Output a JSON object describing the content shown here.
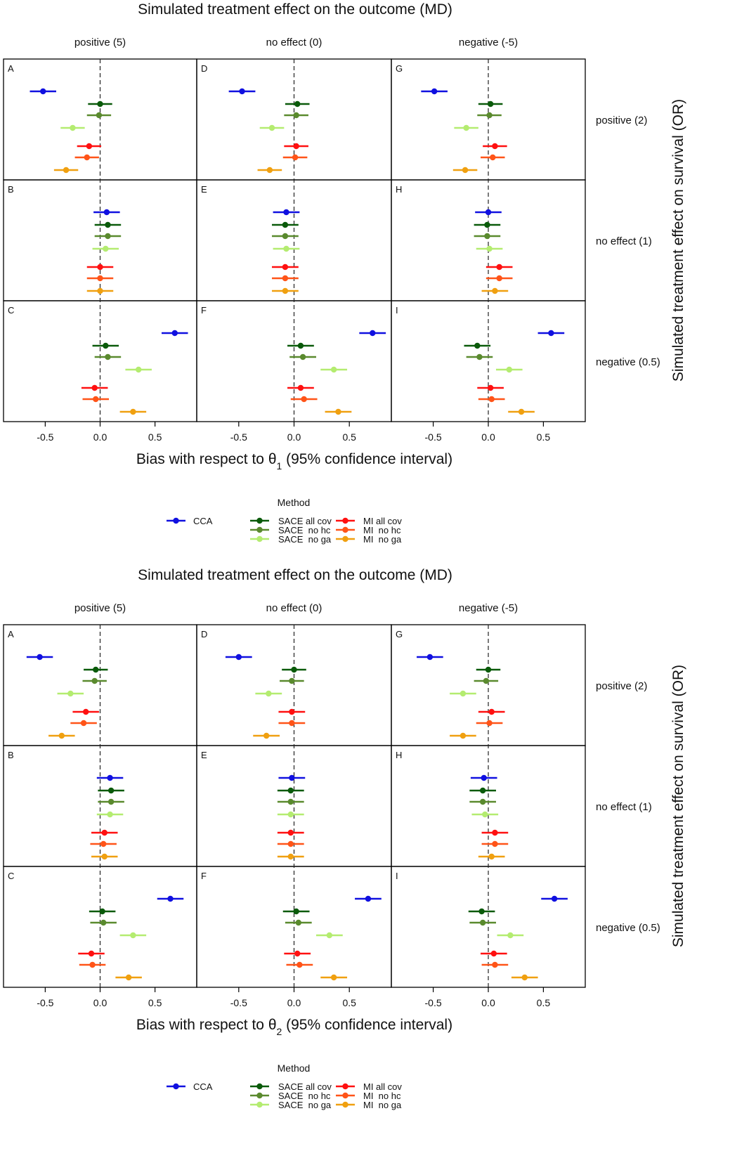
{
  "chart_data": [
    {
      "type": "forest",
      "title": "Simulated treatment effect on the outcome (MD)",
      "xlabel_prefix": "Bias with respect to θ",
      "xlabel_sub": "1",
      "xlabel_suffix": " (95% confidence interval)",
      "ylabel": "Simulated treatment effect on survival (OR)",
      "xlim": [
        -0.88,
        0.88
      ],
      "xticks": [
        "-0.5",
        "0.0",
        "0.5"
      ],
      "xtick_values": [
        -0.5,
        0.0,
        0.5
      ],
      "reference_line": 0,
      "columns": [
        "positive (5)",
        "no effect (0)",
        "negative (-5)"
      ],
      "rows": [
        "positive (2)",
        "no effect (1)",
        "negative (0.5)"
      ],
      "series_order": [
        "CCA",
        "SACE all cov",
        "SACE no hc",
        "SACE no ga",
        "MI all cov",
        "MI no hc",
        "MI no ga"
      ],
      "panels": [
        {
          "label": "A",
          "estimates": [
            -0.52,
            0.0,
            -0.01,
            -0.25,
            -0.1,
            -0.12,
            -0.31
          ],
          "ci_half_width": [
            0.12,
            0.11,
            0.11,
            0.11,
            0.11,
            0.11,
            0.11
          ]
        },
        {
          "label": "D",
          "estimates": [
            -0.47,
            0.03,
            0.02,
            -0.2,
            0.02,
            0.01,
            -0.22
          ],
          "ci_half_width": [
            0.12,
            0.11,
            0.11,
            0.11,
            0.11,
            0.11,
            0.11
          ]
        },
        {
          "label": "G",
          "estimates": [
            -0.49,
            0.02,
            0.01,
            -0.2,
            0.06,
            0.04,
            -0.21
          ],
          "ci_half_width": [
            0.12,
            0.11,
            0.11,
            0.11,
            0.11,
            0.11,
            0.11
          ]
        },
        {
          "label": "B",
          "estimates": [
            0.06,
            0.07,
            0.07,
            0.05,
            0.0,
            0.0,
            0.0
          ],
          "ci_half_width": [
            0.12,
            0.12,
            0.12,
            0.12,
            0.12,
            0.12,
            0.12
          ]
        },
        {
          "label": "E",
          "estimates": [
            -0.07,
            -0.08,
            -0.08,
            -0.07,
            -0.08,
            -0.08,
            -0.08
          ],
          "ci_half_width": [
            0.12,
            0.12,
            0.12,
            0.12,
            0.12,
            0.12,
            0.12
          ]
        },
        {
          "label": "H",
          "estimates": [
            0.0,
            -0.01,
            -0.01,
            0.01,
            0.1,
            0.1,
            0.06
          ],
          "ci_half_width": [
            0.12,
            0.12,
            0.12,
            0.12,
            0.12,
            0.12,
            0.12
          ]
        },
        {
          "label": "C",
          "estimates": [
            0.68,
            0.05,
            0.07,
            0.35,
            -0.05,
            -0.04,
            0.3
          ],
          "ci_half_width": [
            0.12,
            0.12,
            0.12,
            0.12,
            0.12,
            0.12,
            0.12
          ]
        },
        {
          "label": "F",
          "estimates": [
            0.71,
            0.06,
            0.08,
            0.36,
            0.06,
            0.09,
            0.4
          ],
          "ci_half_width": [
            0.12,
            0.12,
            0.12,
            0.12,
            0.12,
            0.12,
            0.12
          ]
        },
        {
          "label": "I",
          "estimates": [
            0.57,
            -0.1,
            -0.08,
            0.19,
            0.02,
            0.03,
            0.3
          ],
          "ci_half_width": [
            0.12,
            0.12,
            0.12,
            0.12,
            0.12,
            0.12,
            0.12
          ]
        }
      ]
    },
    {
      "type": "forest",
      "title": "Simulated treatment effect on the outcome (MD)",
      "xlabel_prefix": "Bias with respect to θ",
      "xlabel_sub": "2",
      "xlabel_suffix": " (95% confidence interval)",
      "ylabel": "Simulated treatment effect on survival (OR)",
      "xlim": [
        -0.88,
        0.88
      ],
      "xticks": [
        "-0.5",
        "0.0",
        "0.5"
      ],
      "xtick_values": [
        -0.5,
        0.0,
        0.5
      ],
      "reference_line": 0,
      "columns": [
        "positive (5)",
        "no effect (0)",
        "negative (-5)"
      ],
      "rows": [
        "positive (2)",
        "no effect (1)",
        "negative (0.5)"
      ],
      "series_order": [
        "CCA",
        "SACE all cov",
        "SACE no hc",
        "SACE no ga",
        "MI all cov",
        "MI no hc",
        "MI no ga"
      ],
      "panels": [
        {
          "label": "A",
          "estimates": [
            -0.55,
            -0.04,
            -0.05,
            -0.27,
            -0.13,
            -0.15,
            -0.35
          ],
          "ci_half_width": [
            0.12,
            0.11,
            0.11,
            0.12,
            0.12,
            0.12,
            0.12
          ]
        },
        {
          "label": "D",
          "estimates": [
            -0.5,
            0.0,
            -0.02,
            -0.23,
            -0.02,
            -0.02,
            -0.25
          ],
          "ci_half_width": [
            0.12,
            0.11,
            0.11,
            0.12,
            0.12,
            0.12,
            0.12
          ]
        },
        {
          "label": "G",
          "estimates": [
            -0.53,
            0.0,
            -0.02,
            -0.23,
            0.03,
            0.01,
            -0.23
          ],
          "ci_half_width": [
            0.12,
            0.11,
            0.11,
            0.12,
            0.12,
            0.12,
            0.12
          ]
        },
        {
          "label": "B",
          "estimates": [
            0.09,
            0.1,
            0.1,
            0.09,
            0.04,
            0.03,
            0.04
          ],
          "ci_half_width": [
            0.12,
            0.12,
            0.12,
            0.12,
            0.12,
            0.12,
            0.12
          ]
        },
        {
          "label": "E",
          "estimates": [
            -0.02,
            -0.03,
            -0.03,
            -0.03,
            -0.03,
            -0.03,
            -0.03
          ],
          "ci_half_width": [
            0.12,
            0.12,
            0.12,
            0.12,
            0.12,
            0.12,
            0.12
          ]
        },
        {
          "label": "H",
          "estimates": [
            -0.04,
            -0.05,
            -0.05,
            -0.03,
            0.06,
            0.06,
            0.03
          ],
          "ci_half_width": [
            0.12,
            0.12,
            0.12,
            0.12,
            0.12,
            0.12,
            0.12
          ]
        },
        {
          "label": "C",
          "estimates": [
            0.64,
            0.02,
            0.03,
            0.3,
            -0.08,
            -0.07,
            0.26
          ],
          "ci_half_width": [
            0.12,
            0.12,
            0.12,
            0.12,
            0.12,
            0.12,
            0.12
          ]
        },
        {
          "label": "F",
          "estimates": [
            0.67,
            0.02,
            0.04,
            0.32,
            0.03,
            0.05,
            0.36
          ],
          "ci_half_width": [
            0.12,
            0.12,
            0.12,
            0.12,
            0.12,
            0.12,
            0.12
          ]
        },
        {
          "label": "I",
          "estimates": [
            0.6,
            -0.06,
            -0.05,
            0.2,
            0.05,
            0.06,
            0.33
          ],
          "ci_half_width": [
            0.12,
            0.12,
            0.12,
            0.12,
            0.12,
            0.12,
            0.12
          ]
        }
      ]
    }
  ],
  "legend": {
    "title": "Method",
    "items": [
      {
        "name": "CCA",
        "color": "#1010e0"
      },
      {
        "name": "SACE all cov",
        "color": "#0a5a0a"
      },
      {
        "name": "SACE  no hc",
        "color": "#5a8a2e"
      },
      {
        "name": "SACE  no ga",
        "color": "#b4ec70"
      },
      {
        "name": "MI all cov",
        "color": "#ff1010"
      },
      {
        "name": "MI  no hc",
        "color": "#ff5418"
      },
      {
        "name": "MI  no ga",
        "color": "#f0a010"
      }
    ]
  }
}
